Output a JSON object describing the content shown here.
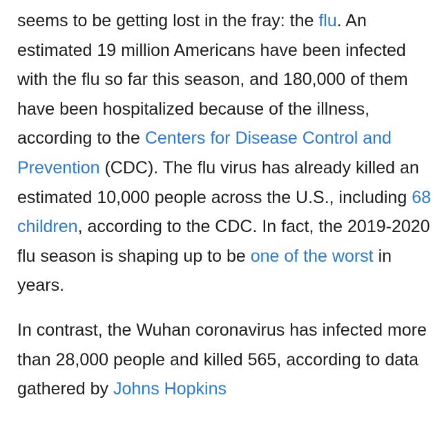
{
  "article": {
    "paragraphs": [
      {
        "runs": [
          {
            "text": "seems to be getting lost in the fray: the "
          },
          {
            "text": "flu",
            "link": true
          },
          {
            "text": ". An estimated 19 million Americans have been infected with the flu so far this season, and 180,000 of them have been hospitalized because of the illness, according to the "
          },
          {
            "text": "Centers for Disease Control and Prevention",
            "link": true
          },
          {
            "text": " (CDC). The flu virus has already killed an estimated 10,000 people across the U.S., including "
          },
          {
            "text": "68 children",
            "link": true
          },
          {
            "text": ", according to the CDC. In fact, the 2019-2020 flu season is shaping up to be "
          },
          {
            "text": "one of the worst",
            "link": true
          },
          {
            "text": " in years."
          }
        ]
      },
      {
        "runs": [
          {
            "text": "In contrast, the Wuhan coronavirus has infected more than 28,000 people and killed 565, according to data gathered by "
          },
          {
            "text": "Johns Hopkins",
            "link": true
          }
        ]
      }
    ]
  }
}
